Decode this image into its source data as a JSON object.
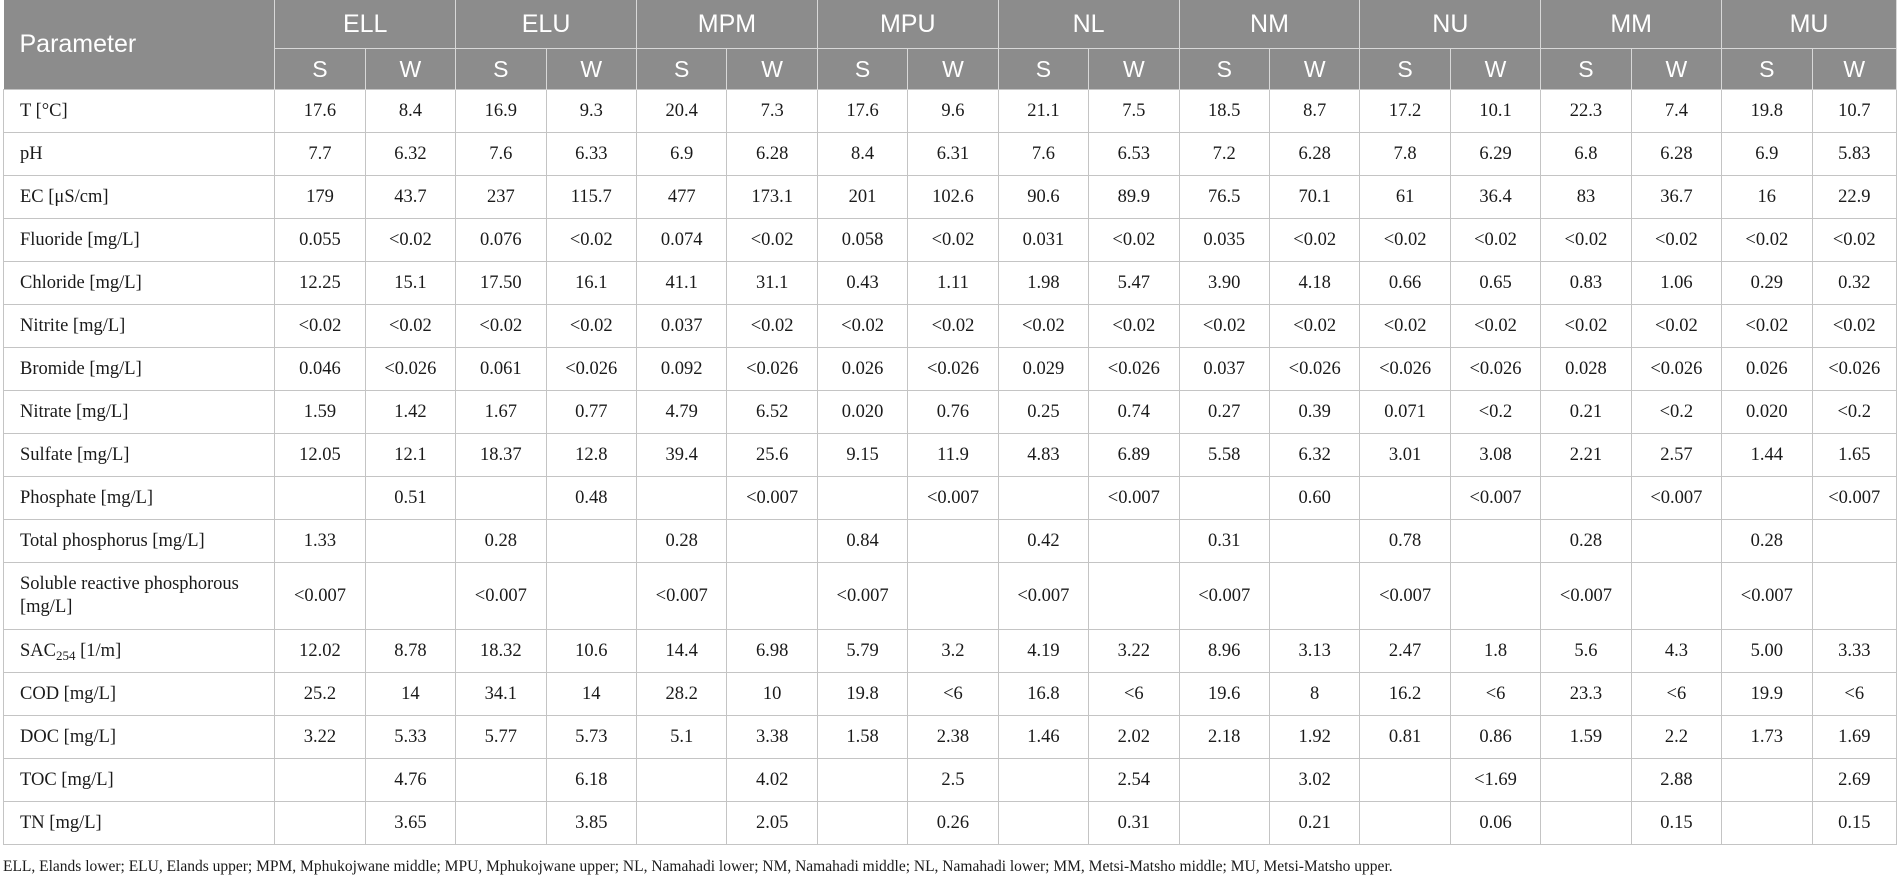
{
  "header": {
    "parameter": "Parameter",
    "sites": [
      "ELL",
      "ELU",
      "MPM",
      "MPU",
      "NL",
      "NM",
      "NU",
      "MM",
      "MU"
    ],
    "seasons": [
      "S",
      "W"
    ]
  },
  "rows": [
    {
      "label": "T [°C]",
      "values": [
        "17.6",
        "8.4",
        "16.9",
        "9.3",
        "20.4",
        "7.3",
        "17.6",
        "9.6",
        "21.1",
        "7.5",
        "18.5",
        "8.7",
        "17.2",
        "10.1",
        "22.3",
        "7.4",
        "19.8",
        "10.7"
      ]
    },
    {
      "label": "pH",
      "values": [
        "7.7",
        "6.32",
        "7.6",
        "6.33",
        "6.9",
        "6.28",
        "8.4",
        "6.31",
        "7.6",
        "6.53",
        "7.2",
        "6.28",
        "7.8",
        "6.29",
        "6.8",
        "6.28",
        "6.9",
        "5.83"
      ]
    },
    {
      "label": "EC [μS/cm]",
      "values": [
        "179",
        "43.7",
        "237",
        "115.7",
        "477",
        "173.1",
        "201",
        "102.6",
        "90.6",
        "89.9",
        "76.5",
        "70.1",
        "61",
        "36.4",
        "83",
        "36.7",
        "16",
        "22.9"
      ]
    },
    {
      "label": "Fluoride [mg/L]",
      "values": [
        "0.055",
        "<0.02",
        "0.076",
        "<0.02",
        "0.074",
        "<0.02",
        "0.058",
        "<0.02",
        "0.031",
        "<0.02",
        "0.035",
        "<0.02",
        "<0.02",
        "<0.02",
        "<0.02",
        "<0.02",
        "<0.02",
        "<0.02"
      ]
    },
    {
      "label": "Chloride [mg/L]",
      "values": [
        "12.25",
        "15.1",
        "17.50",
        "16.1",
        "41.1",
        "31.1",
        "0.43",
        "1.11",
        "1.98",
        "5.47",
        "3.90",
        "4.18",
        "0.66",
        "0.65",
        "0.83",
        "1.06",
        "0.29",
        "0.32"
      ]
    },
    {
      "label": "Nitrite [mg/L]",
      "values": [
        "<0.02",
        "<0.02",
        "<0.02",
        "<0.02",
        "0.037",
        "<0.02",
        "<0.02",
        "<0.02",
        "<0.02",
        "<0.02",
        "<0.02",
        "<0.02",
        "<0.02",
        "<0.02",
        "<0.02",
        "<0.02",
        "<0.02",
        "<0.02"
      ]
    },
    {
      "label": "Bromide [mg/L]",
      "values": [
        "0.046",
        "<0.026",
        "0.061",
        "<0.026",
        "0.092",
        "<0.026",
        "0.026",
        "<0.026",
        "0.029",
        "<0.026",
        "0.037",
        "<0.026",
        "<0.026",
        "<0.026",
        "0.028",
        "<0.026",
        "0.026",
        "<0.026"
      ]
    },
    {
      "label": "Nitrate [mg/L]",
      "values": [
        "1.59",
        "1.42",
        "1.67",
        "0.77",
        "4.79",
        "6.52",
        "0.020",
        "0.76",
        "0.25",
        "0.74",
        "0.27",
        "0.39",
        "0.071",
        "<0.2",
        "0.21",
        "<0.2",
        "0.020",
        "<0.2"
      ]
    },
    {
      "label": "Sulfate [mg/L]",
      "values": [
        "12.05",
        "12.1",
        "18.37",
        "12.8",
        "39.4",
        "25.6",
        "9.15",
        "11.9",
        "4.83",
        "6.89",
        "5.58",
        "6.32",
        "3.01",
        "3.08",
        "2.21",
        "2.57",
        "1.44",
        "1.65"
      ]
    },
    {
      "label": "Phosphate [mg/L]",
      "values": [
        "",
        "0.51",
        "",
        "0.48",
        "",
        "<0.007",
        "",
        "<0.007",
        "",
        "<0.007",
        "",
        "0.60",
        "",
        "<0.007",
        "",
        "<0.007",
        "",
        "<0.007"
      ]
    },
    {
      "label": "Total phosphorus [mg/L]",
      "values": [
        "1.33",
        "",
        "0.28",
        "",
        "0.28",
        "",
        "0.84",
        "",
        "0.42",
        "",
        "0.31",
        "",
        "0.78",
        "",
        "0.28",
        "",
        "0.28",
        ""
      ]
    },
    {
      "label": "Soluble reactive phosphorous [mg/L]",
      "tall": true,
      "values": [
        "<0.007",
        "",
        "<0.007",
        "",
        "<0.007",
        "",
        "<0.007",
        "",
        "<0.007",
        "",
        "<0.007",
        "",
        "<0.007",
        "",
        "<0.007",
        "",
        "<0.007",
        ""
      ]
    },
    {
      "label": "SAC",
      "label_sub": "254",
      "label_suffix": " [1/m]",
      "values": [
        "12.02",
        "8.78",
        "18.32",
        "10.6",
        "14.4",
        "6.98",
        "5.79",
        "3.2",
        "4.19",
        "3.22",
        "8.96",
        "3.13",
        "2.47",
        "1.8",
        "5.6",
        "4.3",
        "5.00",
        "3.33"
      ]
    },
    {
      "label": "COD [mg/L]",
      "values": [
        "25.2",
        "14",
        "34.1",
        "14",
        "28.2",
        "10",
        "19.8",
        "<6",
        "16.8",
        "<6",
        "19.6",
        "8",
        "16.2",
        "<6",
        "23.3",
        "<6",
        "19.9",
        "<6"
      ]
    },
    {
      "label": "DOC [mg/L]",
      "values": [
        "3.22",
        "5.33",
        "5.77",
        "5.73",
        "5.1",
        "3.38",
        "1.58",
        "2.38",
        "1.46",
        "2.02",
        "2.18",
        "1.92",
        "0.81",
        "0.86",
        "1.59",
        "2.2",
        "1.73",
        "1.69"
      ]
    },
    {
      "label": "TOC [mg/L]",
      "values": [
        "",
        "4.76",
        "",
        "6.18",
        "",
        "4.02",
        "",
        "2.5",
        "",
        "2.54",
        "",
        "3.02",
        "",
        "<1.69",
        "",
        "2.88",
        "",
        "2.69"
      ]
    },
    {
      "label": "TN [mg/L]",
      "values": [
        "",
        "3.65",
        "",
        "3.85",
        "",
        "2.05",
        "",
        "0.26",
        "",
        "0.31",
        "",
        "0.21",
        "",
        "0.06",
        "",
        "0.15",
        "",
        "0.15"
      ]
    }
  ],
  "footnote": "ELL, Elands lower; ELU, Elands upper; MPM, Mphukojwane middle; MPU, Mphukojwane upper; NL, Namahadi lower; NM, Namahadi middle; NL, Namahadi lower; MM, Metsi-Matsho middle; MU, Metsi-Matsho upper."
}
